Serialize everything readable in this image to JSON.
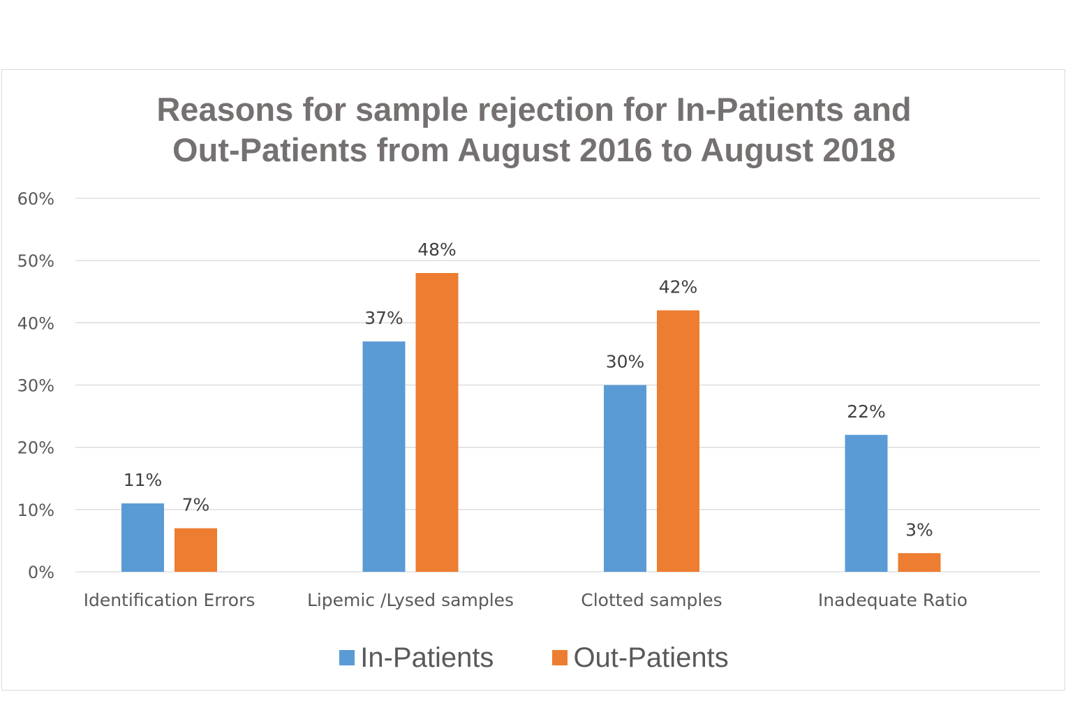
{
  "chart_data": {
    "type": "bar",
    "title": [
      "Reasons for sample rejection for In-Patients and",
      "Out-Patients from August 2016 to August 2018"
    ],
    "categories": [
      "Identification Errors",
      "Lipemic /Lysed samples",
      "Clotted samples",
      "Inadequate Ratio"
    ],
    "series": [
      {
        "name": "In-Patients",
        "values": [
          11,
          37,
          30,
          22
        ],
        "labels": [
          "11%",
          "37%",
          "30%",
          "22%"
        ],
        "color": "#5b9bd5"
      },
      {
        "name": "Out-Patients",
        "values": [
          7,
          48,
          42,
          3
        ],
        "labels": [
          "7%",
          "48%",
          "42%",
          "3%"
        ],
        "color": "#ed7d31"
      }
    ],
    "y_ticks": [
      "0%",
      "10%",
      "20%",
      "30%",
      "40%",
      "50%",
      "60%"
    ],
    "ylim": [
      0,
      60
    ],
    "grid": true,
    "legend_position": "bottom",
    "gridline_color": "#d9d9d9"
  }
}
